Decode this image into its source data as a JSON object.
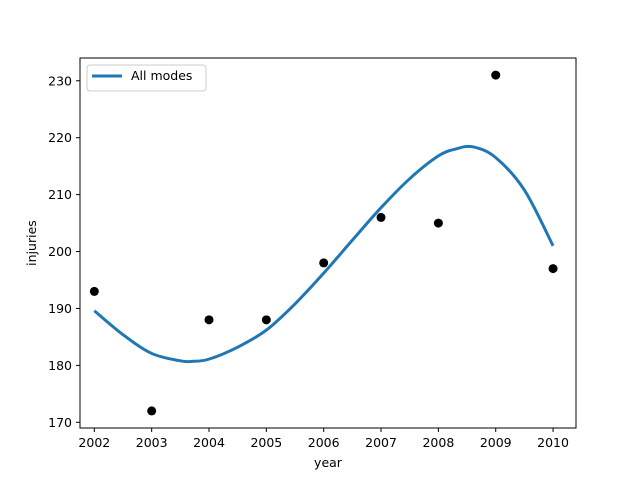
{
  "chart_data": {
    "type": "scatter",
    "title": "",
    "xlabel": "year",
    "ylabel": "injuries",
    "xlim": [
      2001.75,
      2010.4
    ],
    "ylim": [
      169,
      234
    ],
    "xticks": [
      2002,
      2003,
      2004,
      2005,
      2006,
      2007,
      2008,
      2009,
      2010
    ],
    "yticks": [
      170,
      180,
      190,
      200,
      210,
      220,
      230
    ],
    "grid": false,
    "legend_position": "top-left",
    "points": {
      "x": [
        2002,
        2003,
        2004,
        2005,
        2006,
        2007,
        2008,
        2009,
        2010
      ],
      "y": [
        193,
        172,
        188,
        188,
        198,
        206,
        205,
        231,
        197
      ],
      "color": "#000000"
    },
    "series": [
      {
        "name": "All modes",
        "type": "line",
        "color": "#1f77b4",
        "x": [
          2002.0,
          2002.5,
          2003.0,
          2003.5,
          2003.7,
          2004.0,
          2004.5,
          2005.0,
          2005.5,
          2006.0,
          2006.5,
          2007.0,
          2007.5,
          2008.0,
          2008.3,
          2008.6,
          2009.0,
          2009.5,
          2010.0
        ],
        "y": [
          189.6,
          185.4,
          182.1,
          180.8,
          180.7,
          181.1,
          183.2,
          186.2,
          190.8,
          196.2,
          202.0,
          207.7,
          212.8,
          216.8,
          218.0,
          218.4,
          216.5,
          210.8,
          201.0
        ]
      }
    ]
  }
}
